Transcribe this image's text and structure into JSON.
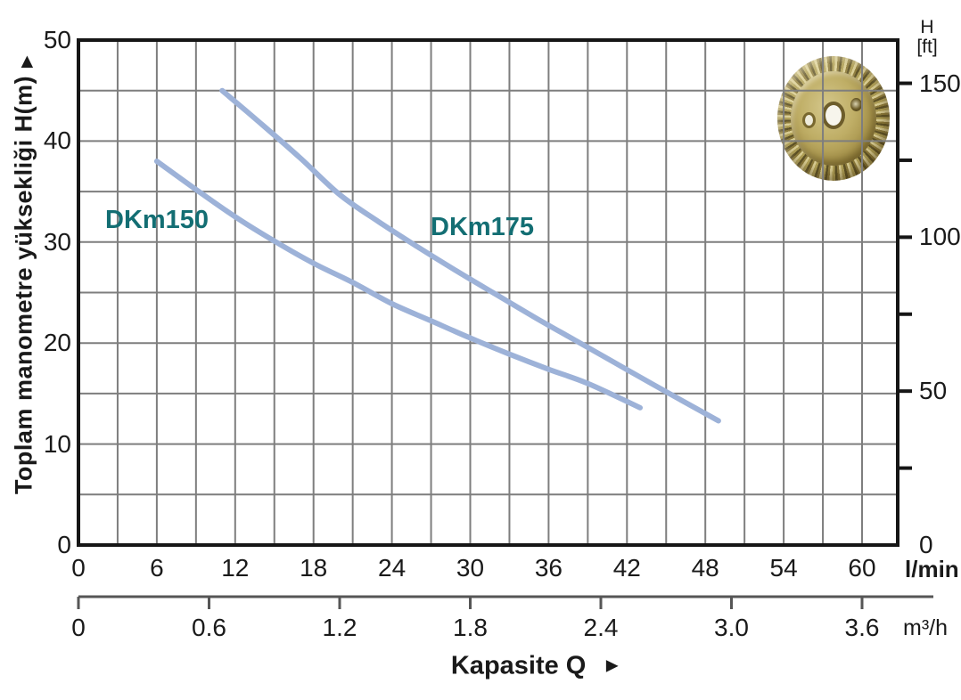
{
  "window": {
    "background": "#ffffff"
  },
  "chart_data": {
    "type": "line",
    "title": "",
    "x_title": {
      "text": "Kapasite Q",
      "arrow": "►"
    },
    "x_axis_primary": {
      "unit": "l/min",
      "ticks": [
        "0",
        "6",
        "12",
        "18",
        "24",
        "30",
        "36",
        "42",
        "48",
        "54",
        "60"
      ],
      "range_lmin": [
        0,
        62.7
      ],
      "grid_step_lmin": 3
    },
    "x_axis_secondary": {
      "unit": "m³/h",
      "ticks": [
        "0",
        "0.6",
        "1.2",
        "1.8",
        "2.4",
        "3.0",
        "3.6"
      ]
    },
    "y_axis_left": {
      "title": "Toplam manometre yüksekliği  H(m)",
      "arrow": "▲",
      "ticks": [
        "0",
        "10",
        "20",
        "30",
        "40",
        "50"
      ],
      "range_m": [
        0,
        50
      ],
      "grid_step_m": 5
    },
    "y_axis_right": {
      "title_line1": "H",
      "title_line2": "[ft]",
      "ticks": [
        "0",
        "50",
        "100",
        "150"
      ],
      "minor_tick_step_ft": 25,
      "ft_per_m": 3.2808
    },
    "series": [
      {
        "name": "DKm150",
        "curve_color": "#9DB2D8",
        "label_color": "#136E73",
        "points_lmin_m": [
          [
            6,
            38
          ],
          [
            9,
            35.2
          ],
          [
            12,
            32.5
          ],
          [
            15,
            30.1
          ],
          [
            18,
            27.9
          ],
          [
            21,
            26.0
          ],
          [
            24,
            23.9
          ],
          [
            27,
            22.2
          ],
          [
            30,
            20.5
          ],
          [
            33,
            18.9
          ],
          [
            36,
            17.4
          ],
          [
            39,
            16.0
          ],
          [
            43,
            13.6
          ]
        ]
      },
      {
        "name": "DKm175",
        "curve_color": "#9DB2D8",
        "label_color": "#136E73",
        "points_lmin_m": [
          [
            11,
            45
          ],
          [
            14,
            41.7
          ],
          [
            17,
            38.3
          ],
          [
            20,
            34.7
          ],
          [
            23,
            32.0
          ],
          [
            26,
            29.5
          ],
          [
            29,
            27.1
          ],
          [
            32,
            24.8
          ],
          [
            35,
            22.5
          ],
          [
            38,
            20.3
          ],
          [
            41,
            18.1
          ],
          [
            44,
            15.9
          ],
          [
            49,
            12.3
          ]
        ]
      }
    ],
    "colors": {
      "grid": "#7E7E7E",
      "axis": "#161616",
      "secondary_axis": "#565656",
      "text": "#1A1A1A"
    },
    "legend_position": "inline-labels",
    "grid": "on"
  },
  "impeller": {
    "alt": "brass pump impeller photo"
  }
}
